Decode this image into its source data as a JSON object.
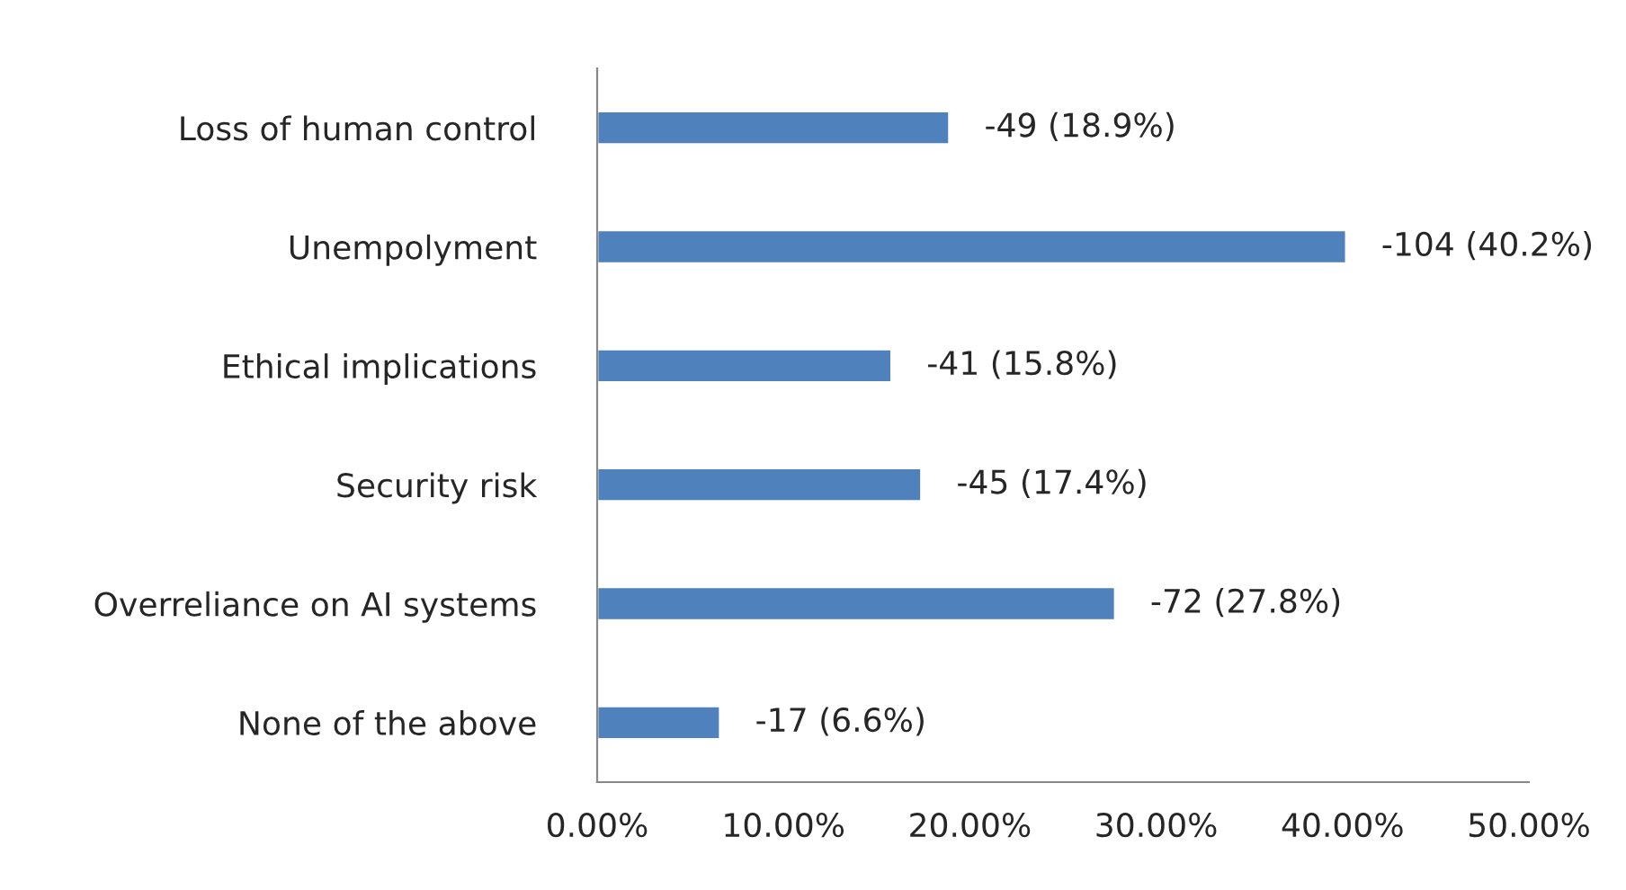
{
  "chart_data": {
    "type": "bar",
    "orientation": "horizontal",
    "categories": [
      "Loss of human control",
      "Unempolyment",
      "Ethical implications",
      "Security risk",
      "Overreliance on AI systems",
      "None of the above"
    ],
    "values": [
      18.9,
      40.2,
      15.8,
      17.4,
      27.8,
      6.6
    ],
    "value_labels": [
      "-49 (18.9%)",
      "-104 (40.2%)",
      "-41 (15.8%)",
      "-45 (17.4%)",
      "-72 (27.8%)",
      "-17 (6.6%)"
    ],
    "color": "#4f81bd",
    "xlim": [
      0,
      50
    ],
    "xticks": [
      {
        "value": 0,
        "label": "0.00%"
      },
      {
        "value": 10,
        "label": "10.00%"
      },
      {
        "value": 20,
        "label": "20.00%"
      },
      {
        "value": 30,
        "label": "30.00%"
      },
      {
        "value": 40,
        "label": "40.00%"
      },
      {
        "value": 50,
        "label": "50.00%"
      }
    ],
    "grid": false,
    "legend": false
  }
}
